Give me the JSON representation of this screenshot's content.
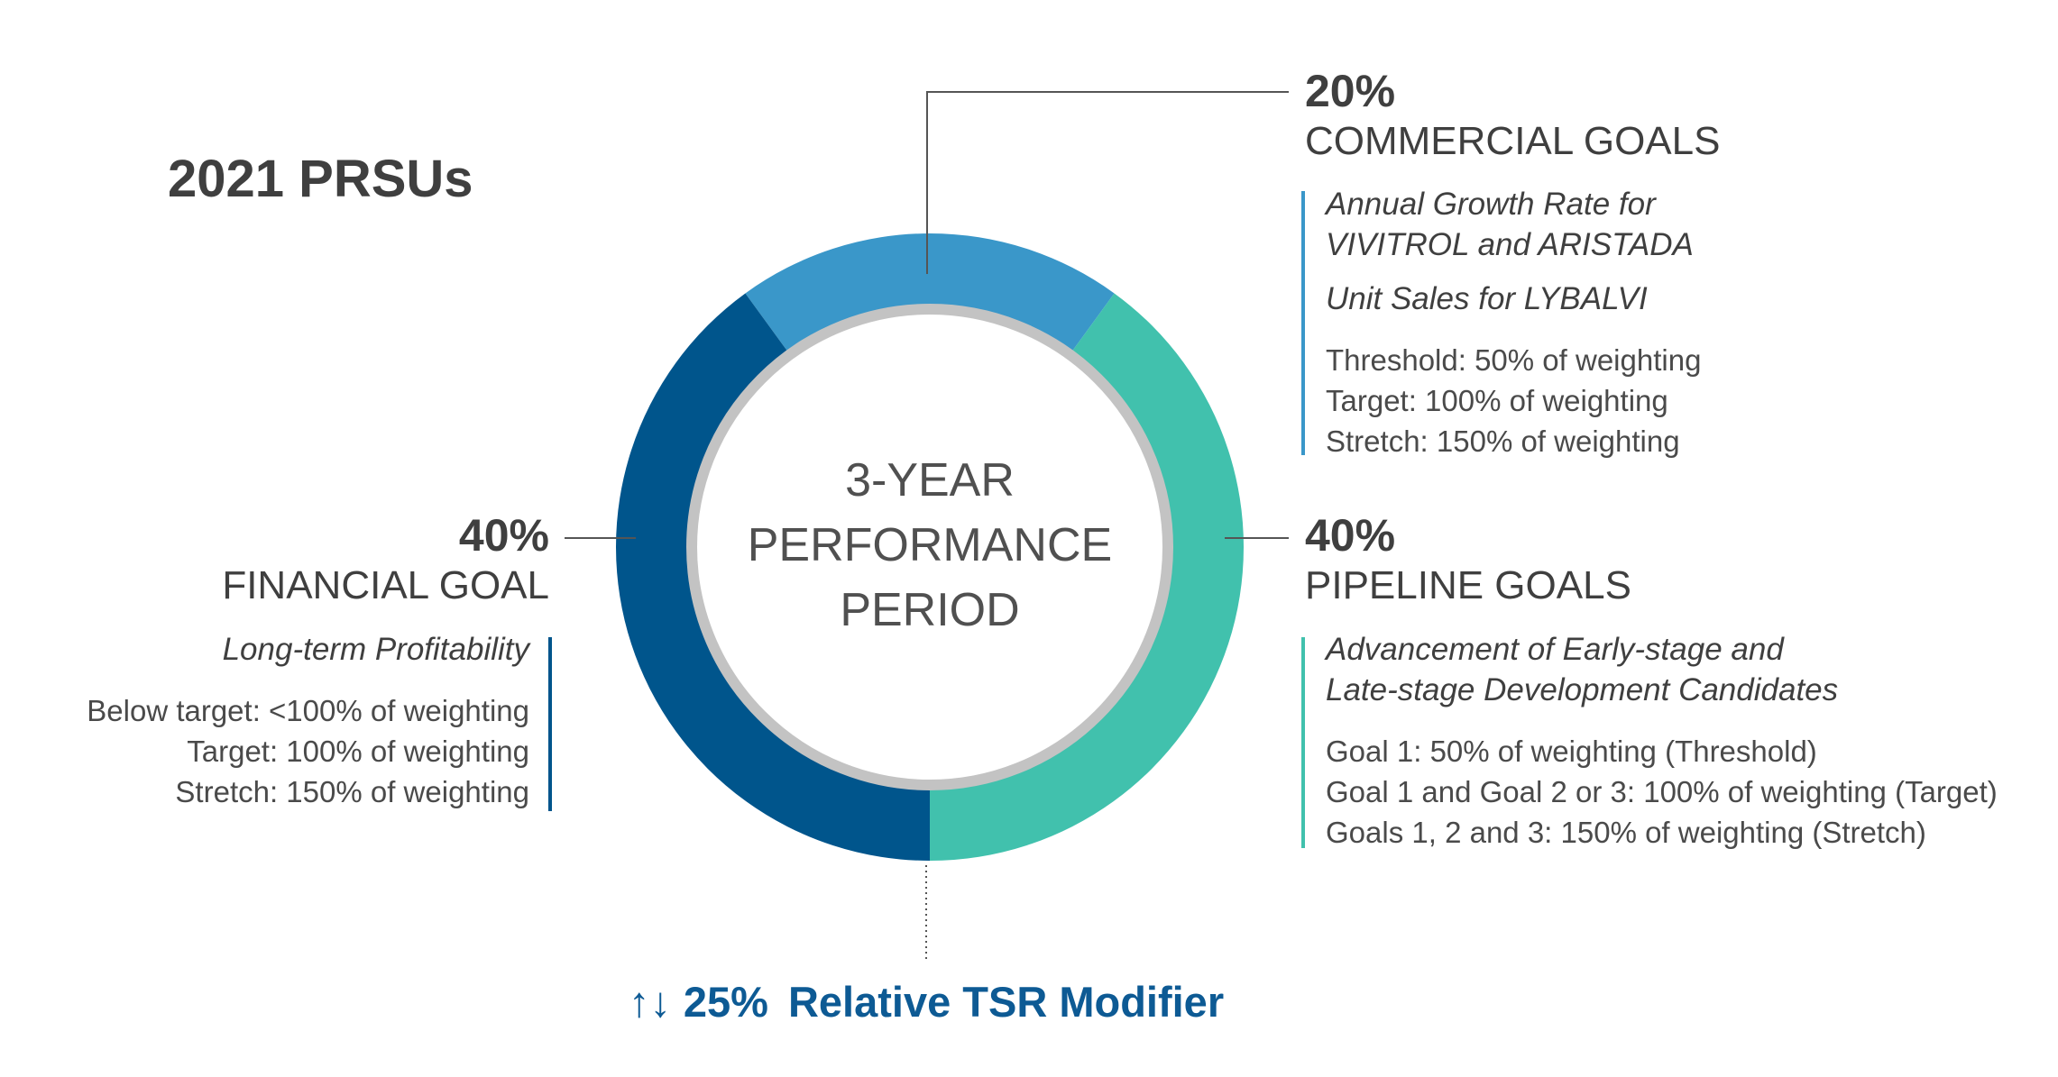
{
  "title": "2021 PRSUs",
  "center_label": [
    "3-YEAR",
    "PERFORMANCE",
    "PERIOD"
  ],
  "colors": {
    "financial": "#00558c",
    "commercial": "#3a97c9",
    "pipeline": "#41c1ad",
    "ring": "#c3c3c3",
    "modifier": "#0d5a94"
  },
  "chart_data": {
    "type": "pie",
    "style": "donut",
    "start_angle_deg": -36,
    "categories": [
      "Commercial Goals",
      "Pipeline Goals",
      "Financial Goal"
    ],
    "values": [
      20,
      40,
      40
    ]
  },
  "commercial": {
    "pct": "20%",
    "heading": "COMMERCIAL GOALS",
    "metrics": [
      "Annual Growth Rate for",
      "VIVITROL and ARISTADA",
      "Unit Sales for LYBALVI"
    ],
    "levels": [
      "Threshold: 50% of weighting",
      "Target: 100% of weighting",
      "Stretch: 150% of weighting"
    ]
  },
  "pipeline": {
    "pct": "40%",
    "heading": "PIPELINE GOALS",
    "metrics": [
      "Advancement of Early-stage and",
      "Late-stage Development Candidates"
    ],
    "levels": [
      "Goal 1: 50% of weighting (Threshold)",
      "Goal 1 and Goal 2 or 3: 100% of weighting (Target)",
      "Goals 1, 2 and 3: 150% of weighting (Stretch)"
    ]
  },
  "financial": {
    "pct": "40%",
    "heading": "FINANCIAL GOAL",
    "metrics": [
      "Long-term Profitability"
    ],
    "levels": [
      "Below target: <100% of weighting",
      "Target: 100% of weighting",
      "Stretch: 150% of weighting"
    ]
  },
  "modifier": {
    "arrows": "↑↓",
    "pct": "25%",
    "label": "Relative TSR Modifier"
  }
}
